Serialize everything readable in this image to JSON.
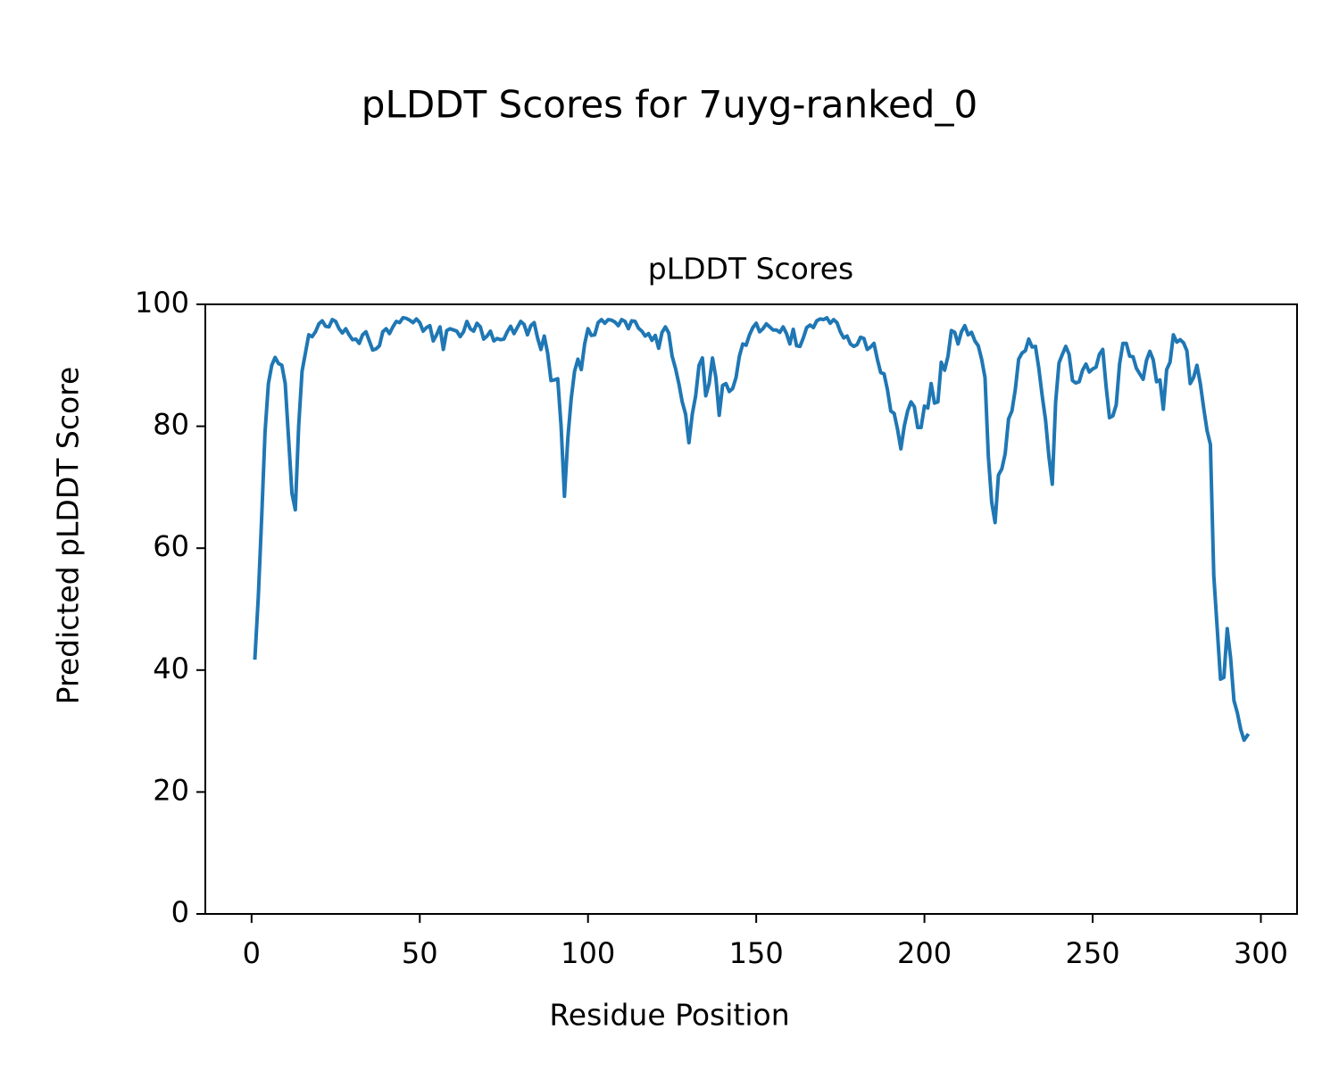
{
  "chart_data": {
    "type": "line",
    "title": "pLDDT Scores for 7uyg-ranked_0",
    "subtitle": "pLDDT Scores",
    "x_label": "Residue Position",
    "y_label": "Predicted pLDDT Score",
    "color": "#1f77b4",
    "grid": false,
    "xlim": [
      -13.75,
      310.75
    ],
    "ylim": [
      0,
      100
    ],
    "xticks": [
      0,
      50,
      100,
      150,
      200,
      250,
      300
    ],
    "yticks": [
      0,
      20,
      40,
      60,
      80,
      100
    ],
    "x": [
      1,
      2,
      3,
      4,
      5,
      6,
      7,
      8,
      9,
      10,
      11,
      12,
      13,
      14,
      15,
      16,
      17,
      18,
      19,
      20,
      21,
      22,
      23,
      24,
      25,
      26,
      27,
      28,
      29,
      30,
      31,
      32,
      33,
      34,
      35,
      36,
      37,
      38,
      39,
      40,
      41,
      42,
      43,
      44,
      45,
      46,
      47,
      48,
      49,
      50,
      51,
      52,
      53,
      54,
      55,
      56,
      57,
      58,
      59,
      60,
      61,
      62,
      63,
      64,
      65,
      66,
      67,
      68,
      69,
      70,
      71,
      72,
      73,
      74,
      75,
      76,
      77,
      78,
      79,
      80,
      81,
      82,
      83,
      84,
      85,
      86,
      87,
      88,
      89,
      90,
      91,
      92,
      93,
      94,
      95,
      96,
      97,
      98,
      99,
      100,
      101,
      102,
      103,
      104,
      105,
      106,
      107,
      108,
      109,
      110,
      111,
      112,
      113,
      114,
      115,
      116,
      117,
      118,
      119,
      120,
      121,
      122,
      123,
      124,
      125,
      126,
      127,
      128,
      129,
      130,
      131,
      132,
      133,
      134,
      135,
      136,
      137,
      138,
      139,
      140,
      141,
      142,
      143,
      144,
      145,
      146,
      147,
      148,
      149,
      150,
      151,
      152,
      153,
      154,
      155,
      156,
      157,
      158,
      159,
      160,
      161,
      162,
      163,
      164,
      165,
      166,
      167,
      168,
      169,
      170,
      171,
      172,
      173,
      174,
      175,
      176,
      177,
      178,
      179,
      180,
      181,
      182,
      183,
      184,
      185,
      186,
      187,
      188,
      189,
      190,
      191,
      192,
      193,
      194,
      195,
      196,
      197,
      198,
      199,
      200,
      201,
      202,
      203,
      204,
      205,
      206,
      207,
      208,
      209,
      210,
      211,
      212,
      213,
      214,
      215,
      216,
      217,
      218,
      219,
      220,
      221,
      222,
      223,
      224,
      225,
      226,
      227,
      228,
      229,
      230,
      231,
      232,
      233,
      234,
      235,
      236,
      237,
      238,
      239,
      240,
      241,
      242,
      243,
      244,
      245,
      246,
      247,
      248,
      249,
      250,
      251,
      252,
      253,
      254,
      255,
      256,
      257,
      258,
      259,
      260,
      261,
      262,
      263,
      264,
      265,
      266,
      267,
      268,
      269,
      270,
      271,
      272,
      273,
      274,
      275,
      276,
      277,
      278,
      279,
      280,
      281,
      282,
      283,
      284,
      285,
      286,
      287,
      288,
      289,
      290,
      291,
      292,
      293,
      294,
      295,
      296
    ],
    "values": [
      42,
      52,
      65,
      79,
      87,
      90,
      91.3,
      90.3,
      90,
      87,
      78,
      69,
      66.3,
      80,
      89,
      92,
      95,
      94.7,
      95.5,
      96.8,
      97.3,
      96.4,
      96.3,
      97.5,
      97.2,
      96,
      95.3,
      96,
      95,
      94.2,
      94.3,
      93.6,
      95,
      95.5,
      94,
      92.5,
      92.7,
      93.2,
      95.5,
      96,
      95.2,
      96.3,
      97.2,
      97,
      97.8,
      97.7,
      97.4,
      97,
      97.6,
      97,
      95.6,
      96.2,
      96.5,
      94,
      95,
      96.3,
      92.6,
      95.7,
      96,
      95.8,
      95.6,
      94.7,
      95.5,
      97.2,
      96,
      95.6,
      96.9,
      96.3,
      94.3,
      94.8,
      95.6,
      94,
      94.4,
      94.2,
      94.3,
      95.5,
      96.4,
      95.2,
      96.2,
      97.2,
      96.7,
      95,
      96.5,
      97,
      94.5,
      92.6,
      94.8,
      92,
      87.5,
      87.6,
      87.8,
      80,
      68.5,
      78,
      84.5,
      89,
      91,
      89.3,
      93.5,
      96,
      94.9,
      95,
      97,
      97.5,
      96.9,
      97.5,
      97.4,
      97.1,
      96.5,
      97.5,
      97.2,
      96,
      97.3,
      97.2,
      96.1,
      95.6,
      94.8,
      95.2,
      94.1,
      94.9,
      92.8,
      95.4,
      96.3,
      95.3,
      91.5,
      89.5,
      87,
      84,
      82,
      77.3,
      82,
      85,
      90,
      91.2,
      85,
      87,
      91.2,
      88,
      81.8,
      86.7,
      87,
      85.7,
      86.2,
      88,
      91.5,
      93.5,
      93.3,
      95,
      96.2,
      96.9,
      95.5,
      96,
      96.8,
      96.3,
      95.8,
      95.8,
      95.4,
      96.3,
      95.2,
      93.5,
      95.9,
      93.2,
      93.1,
      94.5,
      96.2,
      96.6,
      96.2,
      97.3,
      97.6,
      97.5,
      97.8,
      96.9,
      97.5,
      97,
      95.5,
      94.5,
      94.8,
      93.5,
      93.1,
      93.4,
      94.6,
      94.4,
      92.6,
      93,
      93.6,
      91,
      88.8,
      88.6,
      86,
      82.5,
      82.1,
      79.5,
      76.3,
      80,
      82.5,
      84,
      83.2,
      79.8,
      79.8,
      83.3,
      83,
      87,
      83.8,
      84,
      90.5,
      89.2,
      91.5,
      95.7,
      95.4,
      93.5,
      95.5,
      96.5,
      95,
      95.4,
      94,
      93.2,
      91,
      88,
      75,
      67.5,
      64.2,
      72,
      73,
      75.5,
      81.2,
      82.5,
      86,
      91,
      92,
      92.4,
      94.3,
      93,
      93.1,
      89.5,
      85,
      81,
      75,
      70.5,
      84,
      90.4,
      91.8,
      93.1,
      91.8,
      87.5,
      87.1,
      87.3,
      89.2,
      90.2,
      88.9,
      89.4,
      89.7,
      91.8,
      92.6,
      86.5,
      81.4,
      81.7,
      83.5,
      90.2,
      93.6,
      93.6,
      91.5,
      91.4,
      89.5,
      88.6,
      87.7,
      90.8,
      92.3,
      90.9,
      87.3,
      87.6,
      82.8,
      89.3,
      90.5,
      95,
      93.8,
      94.2,
      93.7,
      92.4,
      87,
      88,
      90,
      87,
      83,
      79.3,
      77,
      55.5,
      47,
      38.5,
      38.8,
      46.8,
      42,
      35,
      33,
      30.3,
      28.5,
      29.3
    ]
  }
}
